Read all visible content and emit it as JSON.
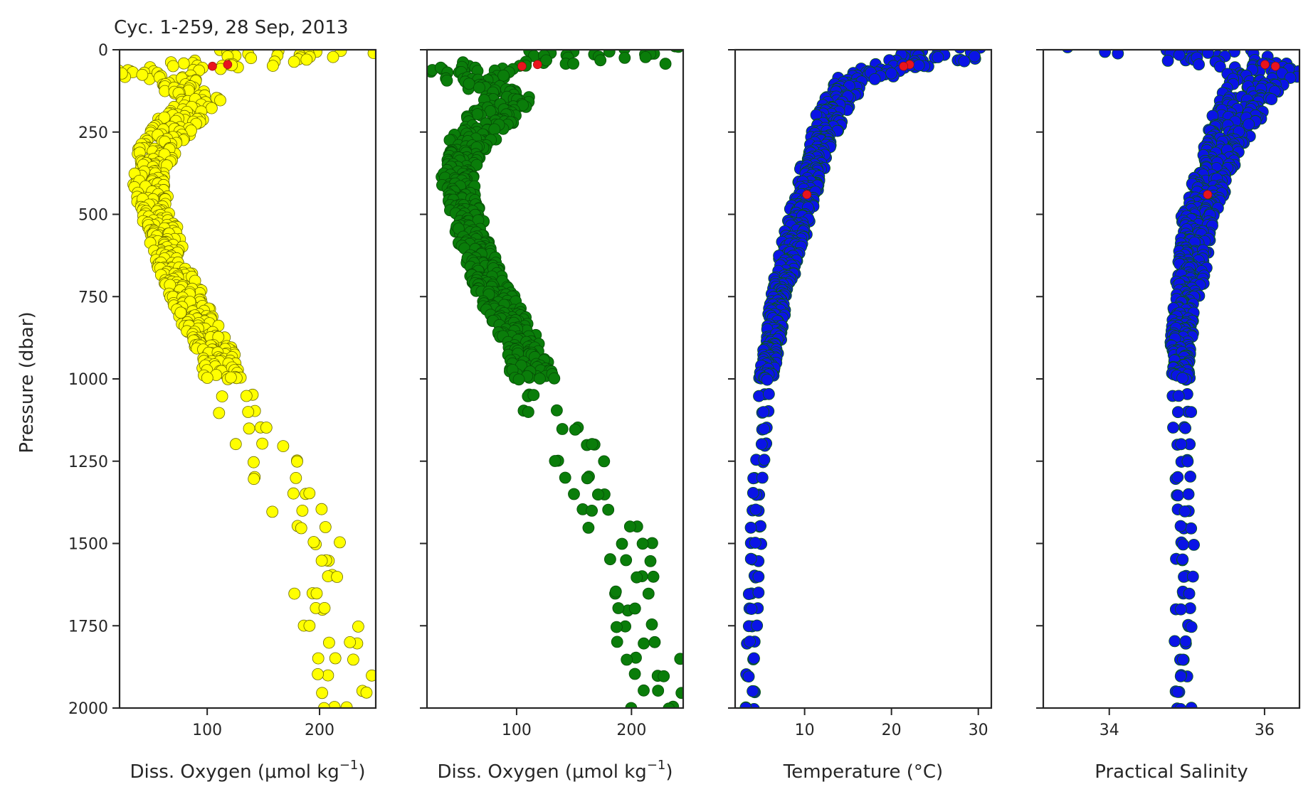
{
  "title": "Cyc. 1-259, 28 Sep, 2013",
  "y_axis": {
    "label": "Pressure (dbar)",
    "range": [
      2000,
      0
    ],
    "ticks": [
      0,
      250,
      500,
      750,
      1000,
      1250,
      1500,
      1750,
      2000
    ],
    "tick_labels": [
      "0",
      "250",
      "500",
      "750",
      "1000",
      "1250",
      "1500",
      "1750",
      "2000"
    ]
  },
  "chart_data": [
    {
      "type": "scatter",
      "panel": "oxygen-raw",
      "xlabel_main": "Diss. Oxygen (μmol kg",
      "xlabel_sup": "−1",
      "xlabel_end": ")",
      "xlim": [
        22,
        250
      ],
      "ylim": [
        2000,
        0
      ],
      "xticks": [
        100,
        200
      ],
      "xtick_labels": [
        "100",
        "200"
      ],
      "marker_color": "#ffff00",
      "edge_color": "#6b6b00",
      "flag_color": "#e8141e",
      "profile": [
        [
          0,
          200
        ],
        [
          25,
          190
        ],
        [
          40,
          120
        ],
        [
          60,
          55
        ],
        [
          100,
          70
        ],
        [
          150,
          95
        ],
        [
          200,
          80
        ],
        [
          300,
          55
        ],
        [
          400,
          48
        ],
        [
          500,
          55
        ],
        [
          600,
          65
        ],
        [
          700,
          75
        ],
        [
          800,
          90
        ],
        [
          900,
          105
        ],
        [
          1000,
          115
        ],
        [
          1100,
          130
        ],
        [
          1200,
          150
        ],
        [
          1300,
          165
        ],
        [
          1400,
          178
        ],
        [
          1500,
          190
        ],
        [
          1600,
          200
        ],
        [
          1700,
          210
        ],
        [
          1800,
          215
        ],
        [
          1900,
          220
        ],
        [
          2000,
          222
        ]
      ],
      "spread": [
        [
          0,
          90
        ],
        [
          40,
          70
        ],
        [
          100,
          18
        ],
        [
          200,
          22
        ],
        [
          400,
          14
        ],
        [
          800,
          16
        ],
        [
          1000,
          18
        ],
        [
          1100,
          24
        ],
        [
          1400,
          28
        ],
        [
          2000,
          28
        ]
      ]
    },
    {
      "type": "scatter",
      "panel": "oxygen-adjusted",
      "xlabel_main": "Diss. Oxygen (μmol kg",
      "xlabel_sup": "−1",
      "xlabel_end": ")",
      "xlim": [
        22,
        245
      ],
      "ylim": [
        2000,
        0
      ],
      "xticks": [
        100,
        200
      ],
      "xtick_labels": [
        "100",
        "200"
      ],
      "marker_color": "#0a7d0a",
      "edge_color": "#064d06",
      "flag_color": "#e8141e",
      "profile": [
        [
          0,
          200
        ],
        [
          25,
          190
        ],
        [
          40,
          120
        ],
        [
          60,
          55
        ],
        [
          100,
          70
        ],
        [
          150,
          95
        ],
        [
          200,
          80
        ],
        [
          300,
          55
        ],
        [
          400,
          48
        ],
        [
          500,
          55
        ],
        [
          600,
          65
        ],
        [
          700,
          75
        ],
        [
          800,
          90
        ],
        [
          900,
          105
        ],
        [
          1000,
          115
        ],
        [
          1100,
          130
        ],
        [
          1200,
          150
        ],
        [
          1300,
          165
        ],
        [
          1400,
          178
        ],
        [
          1500,
          190
        ],
        [
          1600,
          200
        ],
        [
          1700,
          210
        ],
        [
          1800,
          215
        ],
        [
          1900,
          220
        ],
        [
          2000,
          222
        ]
      ],
      "spread": [
        [
          0,
          90
        ],
        [
          40,
          70
        ],
        [
          100,
          18
        ],
        [
          200,
          22
        ],
        [
          400,
          14
        ],
        [
          800,
          16
        ],
        [
          1000,
          18
        ],
        [
          1100,
          24
        ],
        [
          1400,
          28
        ],
        [
          2000,
          28
        ]
      ]
    },
    {
      "type": "scatter",
      "panel": "temperature",
      "xlabel_main": "Temperature (°C)",
      "xlabel_sup": "",
      "xlabel_end": "",
      "xlim": [
        2,
        31.5
      ],
      "ylim": [
        2000,
        0
      ],
      "xticks": [
        10,
        20,
        30
      ],
      "xtick_labels": [
        "10",
        "20",
        "30"
      ],
      "marker_color": "#0a14e6",
      "edge_color": "#0a5c0a",
      "flag_color": "#e8141e",
      "profile": [
        [
          0,
          26
        ],
        [
          25,
          25
        ],
        [
          50,
          20
        ],
        [
          100,
          15
        ],
        [
          200,
          13
        ],
        [
          300,
          11.5
        ],
        [
          400,
          10.5
        ],
        [
          500,
          9.5
        ],
        [
          600,
          8.5
        ],
        [
          700,
          7.5
        ],
        [
          800,
          6.8
        ],
        [
          900,
          6.2
        ],
        [
          1000,
          5.5
        ],
        [
          1200,
          4.9
        ],
        [
          1400,
          4.5
        ],
        [
          1600,
          4.2
        ],
        [
          1800,
          3.9
        ],
        [
          2000,
          3.7
        ]
      ],
      "spread": [
        [
          0,
          5
        ],
        [
          50,
          5
        ],
        [
          100,
          1.8
        ],
        [
          300,
          1.5
        ],
        [
          600,
          1.2
        ],
        [
          1000,
          0.8
        ],
        [
          2000,
          0.5
        ]
      ]
    },
    {
      "type": "scatter",
      "panel": "salinity",
      "xlabel_main": "Practical Salinity",
      "xlabel_sup": "",
      "xlabel_end": "",
      "xlim": [
        33.15,
        36.45
      ],
      "ylim": [
        2000,
        0
      ],
      "xticks": [
        34,
        36
      ],
      "xtick_labels": [
        "34",
        "36"
      ],
      "marker_color": "#0a14e6",
      "edge_color": "#0a5c0a",
      "flag_color": "#e8141e",
      "profile": [
        [
          0,
          34.6
        ],
        [
          25,
          35.4
        ],
        [
          50,
          36.0
        ],
        [
          100,
          35.9
        ],
        [
          200,
          35.65
        ],
        [
          300,
          35.45
        ],
        [
          400,
          35.3
        ],
        [
          500,
          35.15
        ],
        [
          600,
          35.1
        ],
        [
          700,
          35.05
        ],
        [
          800,
          34.95
        ],
        [
          900,
          34.92
        ],
        [
          1000,
          34.92
        ],
        [
          1200,
          34.95
        ],
        [
          1500,
          34.97
        ],
        [
          1800,
          34.96
        ],
        [
          2000,
          34.95
        ]
      ],
      "spread": [
        [
          0,
          1.2
        ],
        [
          50,
          0.5
        ],
        [
          150,
          0.35
        ],
        [
          300,
          0.25
        ],
        [
          600,
          0.2
        ],
        [
          1000,
          0.12
        ],
        [
          2000,
          0.12
        ]
      ]
    }
  ]
}
